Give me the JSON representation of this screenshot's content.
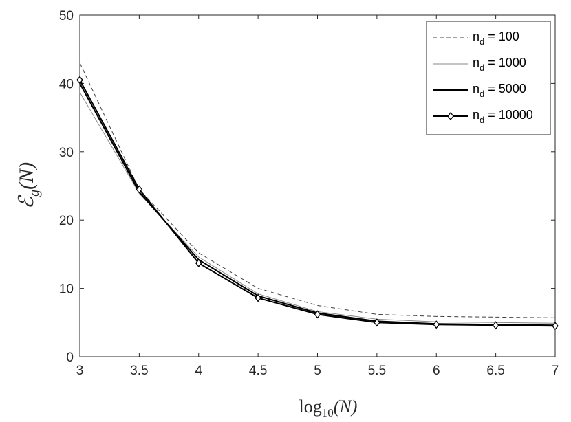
{
  "chart_data": {
    "type": "line",
    "xlabel_base": "log",
    "xlabel_sub": "10",
    "xlabel_arg": "(N)",
    "ylabel_main": "ℰ",
    "ylabel_sub": "g",
    "ylabel_arg": "(N)",
    "xlim": [
      3,
      7
    ],
    "ylim": [
      0,
      50
    ],
    "x_ticks": [
      3,
      3.5,
      4,
      4.5,
      5,
      5.5,
      6,
      6.5,
      7
    ],
    "x_tick_labels": [
      "3",
      "3.5",
      "4",
      "4.5",
      "5",
      "5.5",
      "6",
      "6.5",
      "7"
    ],
    "y_ticks": [
      0,
      10,
      20,
      30,
      40,
      50
    ],
    "y_tick_labels": [
      "0",
      "10",
      "20",
      "30",
      "40",
      "50"
    ],
    "grid": false,
    "legend_position": "top-right",
    "x": [
      3,
      3.5,
      4,
      4.5,
      5,
      5.5,
      6,
      6.5,
      7
    ],
    "series": [
      {
        "name": "n_d = 100",
        "legend_main": "n",
        "legend_sub": "d",
        "legend_rest": " = 100",
        "style": "dashed",
        "color": "#404040",
        "values": [
          43.0,
          24.5,
          15.2,
          10.0,
          7.5,
          6.2,
          5.9,
          5.8,
          5.7
        ]
      },
      {
        "name": "n_d = 1000",
        "legend_main": "n",
        "legend_sub": "d",
        "legend_rest": " = 1000",
        "style": "thin",
        "color": "#888888",
        "values": [
          38.7,
          23.9,
          14.6,
          9.2,
          6.6,
          5.5,
          5.1,
          5.0,
          4.9
        ]
      },
      {
        "name": "n_d = 5000",
        "legend_main": "n",
        "legend_sub": "d",
        "legend_rest": " = 5000",
        "style": "solid",
        "color": "#000000",
        "values": [
          40.0,
          24.1,
          14.2,
          8.9,
          6.4,
          5.2,
          4.8,
          4.7,
          4.6
        ]
      },
      {
        "name": "n_d = 10000",
        "legend_main": "n",
        "legend_sub": "d",
        "legend_rest": " = 10000",
        "style": "diamond",
        "color": "#000000",
        "values": [
          40.5,
          24.5,
          13.7,
          8.6,
          6.2,
          5.0,
          4.7,
          4.6,
          4.5
        ]
      }
    ]
  }
}
